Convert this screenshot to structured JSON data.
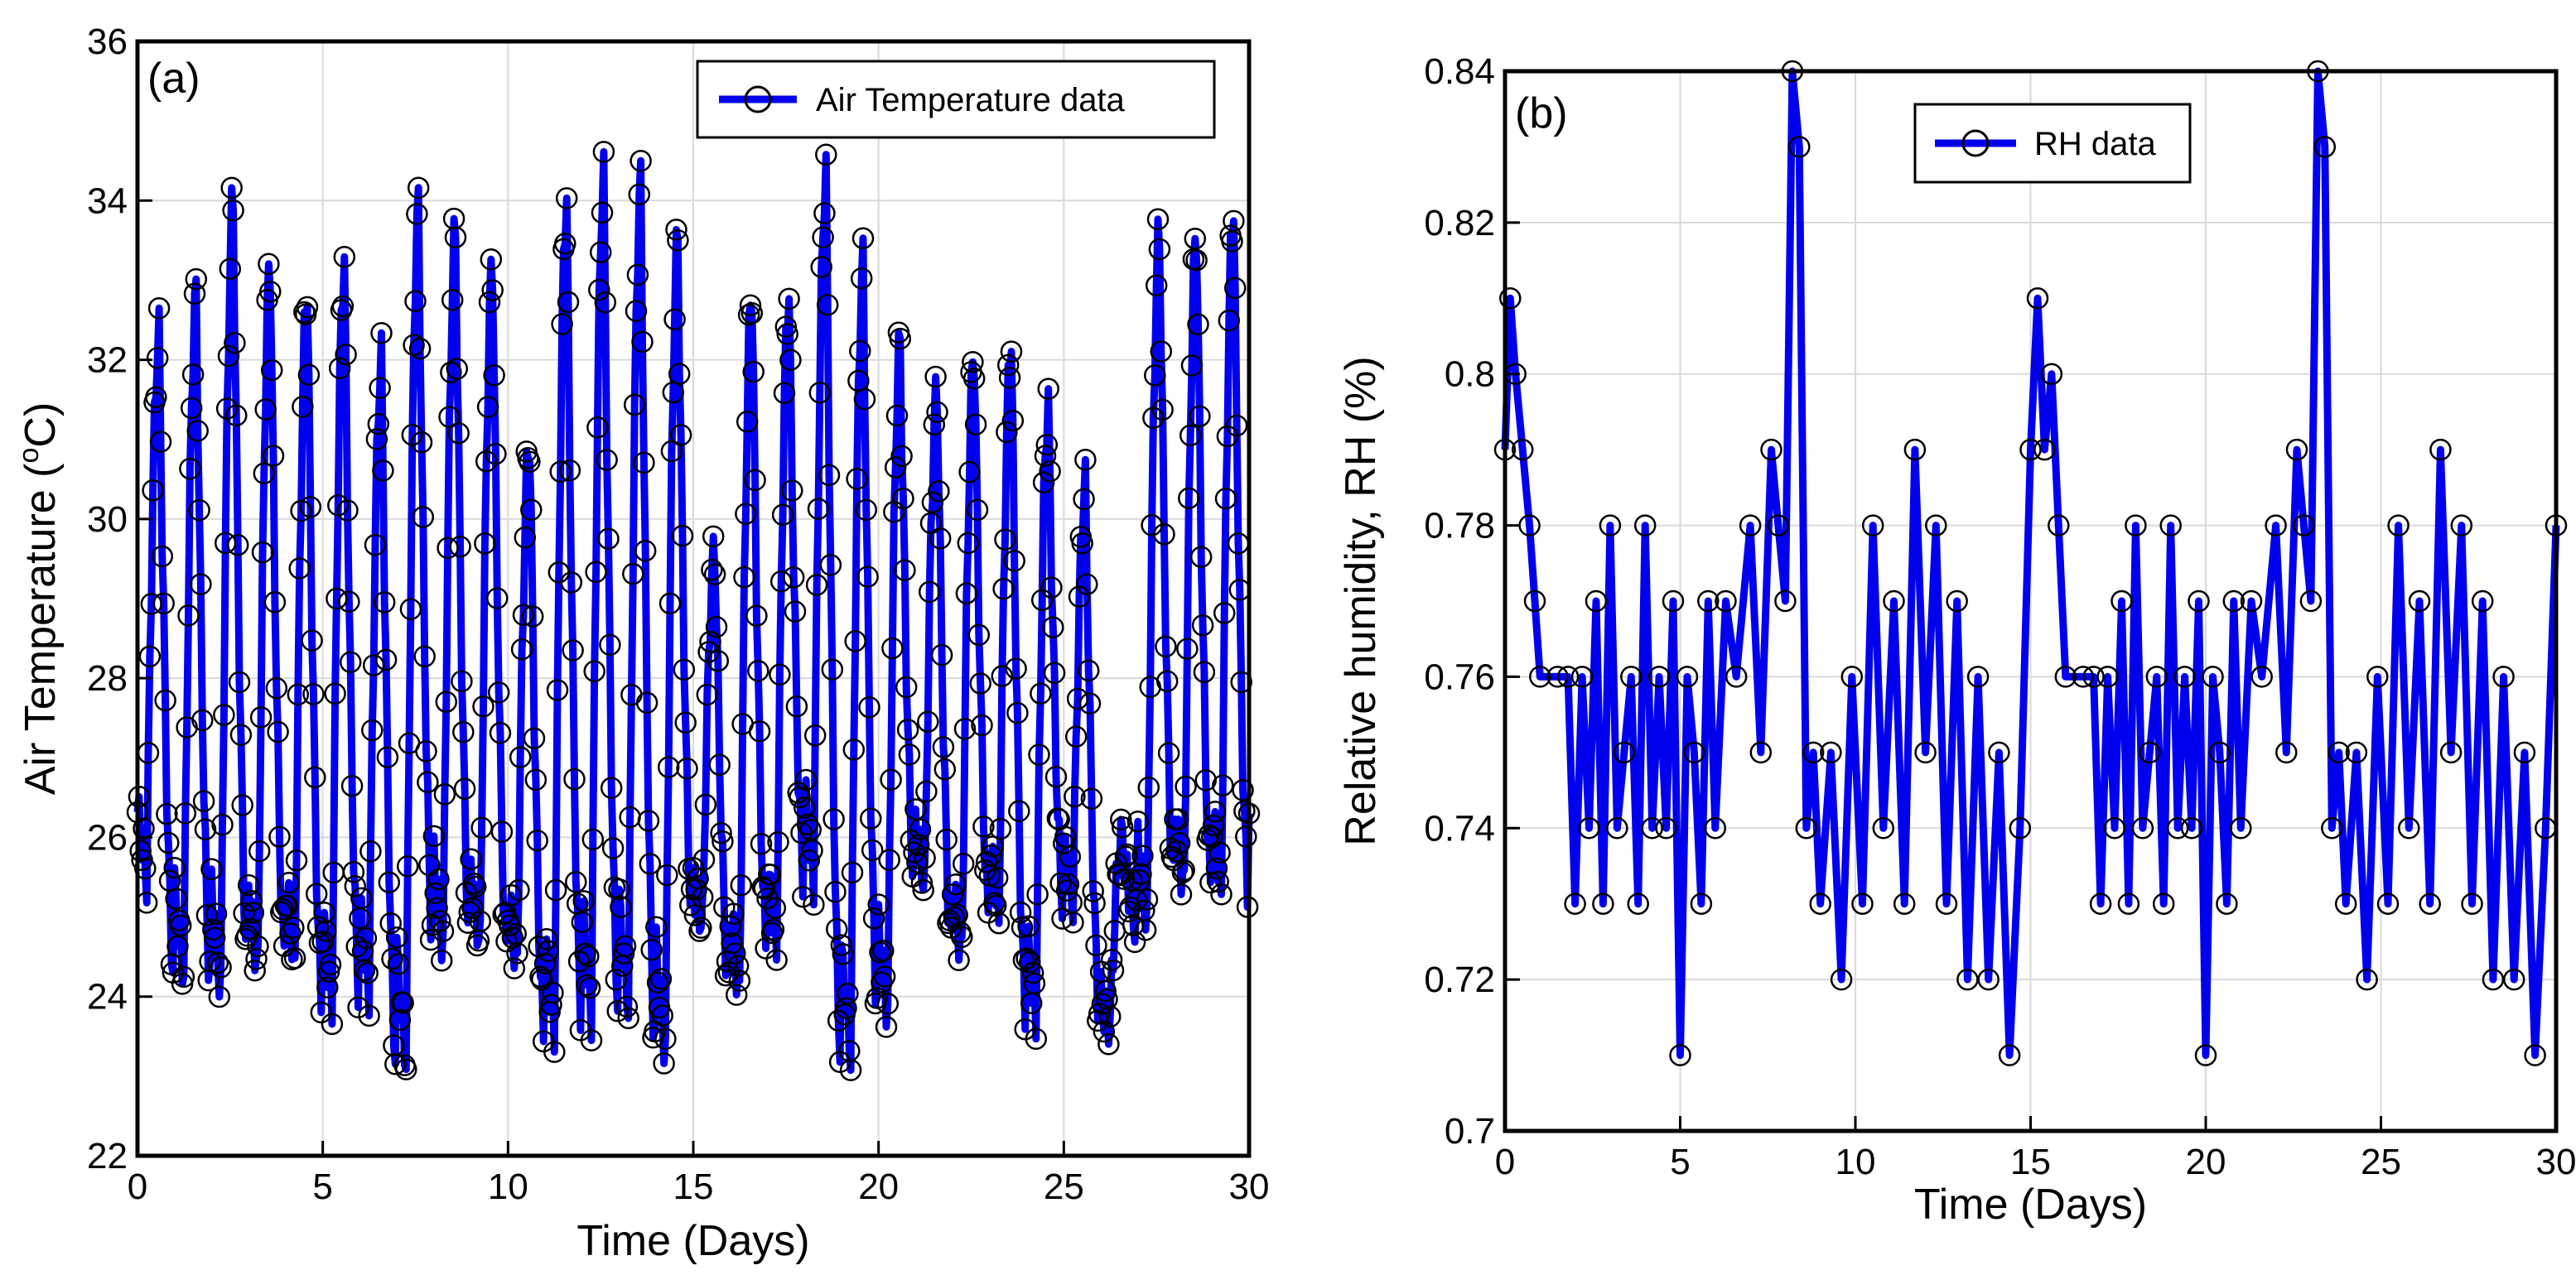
{
  "colors": {
    "line": "#0000ee",
    "marker": "#000000",
    "grid": "#d9d9d9"
  },
  "chart_data": [
    {
      "type": "line",
      "panel_label": "(a)",
      "xlabel": "Time (Days)",
      "ylabel_main": "Air Temperature (",
      "ylabel_super": "o",
      "ylabel_tail": "C)",
      "legend": "Air Temperature data",
      "legend_position": "top-right",
      "xlim": [
        0,
        30
      ],
      "ylim": [
        22,
        36
      ],
      "xticks": [
        0,
        5,
        10,
        15,
        20,
        25,
        30
      ],
      "yticks": [
        22,
        24,
        26,
        28,
        30,
        32,
        34,
        36
      ],
      "grid": true,
      "series_description": "Hourly air temperature, daily cycle: night minimum and afternoon maximum per day",
      "daily_min": [
        25.5,
        24.3,
        24.1,
        24.3,
        24.4,
        23.9,
        24.1,
        23.2,
        24.6,
        24.6,
        24.4,
        23.5,
        23.8,
        23.9,
        23.3,
        24.9,
        24.0,
        24.6,
        25.5,
        23.3,
        23.8,
        25.4,
        24.5,
        25.0,
        23.8,
        25.2,
        23.7,
        24.9,
        25.3,
        25.3
      ],
      "daily_max": [
        32.3,
        32.8,
        34.0,
        33.2,
        32.9,
        33.2,
        32.0,
        33.9,
        33.6,
        33.2,
        31.0,
        34.0,
        34.3,
        34.2,
        33.5,
        29.6,
        32.9,
        32.8,
        34.3,
        33.2,
        32.2,
        31.6,
        32.1,
        32.2,
        31.4,
        30.4,
        26.0,
        33.6,
        33.6,
        33.9
      ]
    },
    {
      "type": "line",
      "panel_label": "(b)",
      "xlabel": "Time (Days)",
      "ylabel": "Relative humidity, RH (%)",
      "legend": "RH data",
      "legend_position": "top-center",
      "xlim": [
        0,
        30
      ],
      "ylim": [
        0.7,
        0.84
      ],
      "xticks": [
        0,
        5,
        10,
        15,
        20,
        25,
        30
      ],
      "yticks": [
        0.7,
        0.72,
        0.74,
        0.76,
        0.78,
        0.8,
        0.82,
        0.84
      ],
      "ytick_labels": [
        "0.7",
        "0.72",
        "0.74",
        "0.76",
        "0.78",
        "0.8",
        "0.82",
        "0.84"
      ],
      "grid": true,
      "series_description": "Relative humidity with two repeating 15-day patterns",
      "x": [
        0,
        0.15,
        0.3,
        0.5,
        0.7,
        0.85,
        1.0,
        1.5,
        1.8,
        2.0,
        2.2,
        2.4,
        2.6,
        2.8,
        3.0,
        3.2,
        3.4,
        3.6,
        3.8,
        4.0,
        4.2,
        4.4,
        4.6,
        4.8,
        5.0,
        5.2,
        5.4,
        5.6,
        5.8,
        6.0,
        6.3,
        6.6,
        7.0,
        7.3,
        7.6,
        7.8,
        8.0,
        8.2,
        8.4,
        8.6,
        8.8,
        9.0,
        9.3,
        9.6,
        9.9,
        10.2,
        10.5,
        10.8,
        11.1,
        11.4,
        11.7,
        12.0,
        12.3,
        12.6,
        12.9,
        13.2,
        13.5,
        13.8,
        14.1,
        14.4,
        14.7,
        15.0,
        15.2,
        15.4,
        15.6,
        15.8,
        16.0,
        16.5,
        16.8,
        17.0,
        17.2,
        17.4,
        17.6,
        17.8,
        18.0,
        18.2,
        18.4,
        18.6,
        18.8,
        19.0,
        19.2,
        19.4,
        19.6,
        19.8,
        20.0,
        20.2,
        20.4,
        20.6,
        20.8,
        21.0,
        21.3,
        21.6,
        22.0,
        22.3,
        22.6,
        22.8,
        23.0,
        23.2,
        23.4,
        23.6,
        23.8,
        24.0,
        24.3,
        24.6,
        24.9,
        25.2,
        25.5,
        25.8,
        26.1,
        26.4,
        26.7,
        27.0,
        27.3,
        27.6,
        27.9,
        28.2,
        28.5,
        28.8,
        29.1,
        29.4,
        29.7,
        30.0
      ],
      "values": [
        0.79,
        0.81,
        0.8,
        0.79,
        0.78,
        0.77,
        0.76,
        0.76,
        0.76,
        0.73,
        0.76,
        0.74,
        0.77,
        0.73,
        0.78,
        0.74,
        0.75,
        0.76,
        0.73,
        0.78,
        0.74,
        0.76,
        0.74,
        0.77,
        0.71,
        0.76,
        0.75,
        0.73,
        0.77,
        0.74,
        0.77,
        0.76,
        0.78,
        0.75,
        0.79,
        0.78,
        0.77,
        0.84,
        0.83,
        0.74,
        0.75,
        0.73,
        0.75,
        0.72,
        0.76,
        0.73,
        0.78,
        0.74,
        0.77,
        0.73,
        0.79,
        0.75,
        0.78,
        0.73,
        0.77,
        0.72,
        0.76,
        0.72,
        0.75,
        0.71,
        0.74,
        0.79,
        0.81,
        0.79,
        0.8,
        0.78,
        0.76,
        0.76,
        0.76,
        0.73,
        0.76,
        0.74,
        0.77,
        0.73,
        0.78,
        0.74,
        0.75,
        0.76,
        0.73,
        0.78,
        0.74,
        0.76,
        0.74,
        0.77,
        0.71,
        0.76,
        0.75,
        0.73,
        0.77,
        0.74,
        0.77,
        0.76,
        0.78,
        0.75,
        0.79,
        0.78,
        0.77,
        0.84,
        0.83,
        0.74,
        0.75,
        0.73,
        0.75,
        0.72,
        0.76,
        0.73,
        0.78,
        0.74,
        0.77,
        0.73,
        0.79,
        0.75,
        0.78,
        0.73,
        0.77,
        0.72,
        0.76,
        0.72,
        0.75,
        0.71,
        0.74,
        0.78
      ]
    }
  ]
}
